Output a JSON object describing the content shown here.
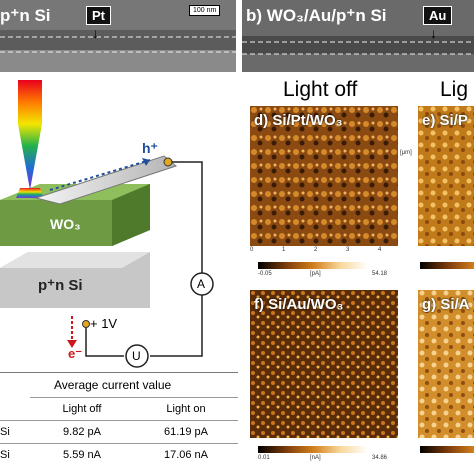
{
  "panel_a": {
    "label_fragment": "p⁺n Si",
    "metal_tag": "Pt",
    "scale_bar": "100 nm"
  },
  "panel_b": {
    "label": "b) WO₃/Au/p⁺n Si",
    "metal_tag": "Au"
  },
  "headers": {
    "light_off": "Light off",
    "light_on_partial": "Lig"
  },
  "afm_panels": {
    "d": {
      "label": "d) Si/Pt/WO₃",
      "scale_min": "-0.05",
      "scale_max": "54.18",
      "unit": "[pA]"
    },
    "e": {
      "label": "e) Si/P"
    },
    "f": {
      "label": "f) Si/Au/WO₃",
      "scale_min": "0.01",
      "scale_max": "34.86",
      "unit": "[nA]"
    },
    "g": {
      "label": "g) Si/A"
    },
    "axis_unit": "[μm]",
    "axis_ticks": [
      "0",
      "1",
      "2",
      "3",
      "4"
    ]
  },
  "schematic": {
    "wo3_label": "WO₃",
    "si_label": "p⁺n Si",
    "hole_label": "h⁺",
    "electron_label": "e⁻",
    "ammeter": "A",
    "source": "U",
    "bias": "+ 1V"
  },
  "table": {
    "header": "Average current value",
    "col_off": "Light off",
    "col_on": "Light on",
    "rows": [
      {
        "row_label": "Si",
        "off": "9.82 pA",
        "on": "61.19 pA"
      },
      {
        "row_label": "Si",
        "off": "5.59 nA",
        "on": "17.06 nA"
      }
    ]
  },
  "colors": {
    "wo3": "#6e9a43",
    "wo3_top": "#8fbf5c",
    "si": "#d2d2d2",
    "afm": "#b06a1c",
    "tip": "#e2a820",
    "hole_arrow": "#1f4f9a",
    "electron": "#cc1a1a"
  }
}
